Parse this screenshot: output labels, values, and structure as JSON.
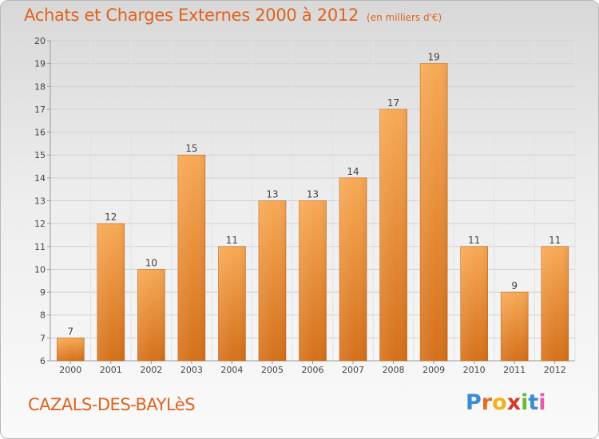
{
  "title": "Achats et Charges Externes 2000 à 2012",
  "unit": "(en milliers d'€)",
  "commune": "CAZALS-DES-BAYLèS",
  "logo_text": "Proxiti",
  "colors": {
    "accent": "#e0621d",
    "bar_light": "#f6a752",
    "bar_dark": "#d8741c",
    "grid": "#cfcfcf"
  },
  "chart_data": {
    "type": "bar",
    "categories": [
      "2000",
      "2001",
      "2002",
      "2003",
      "2004",
      "2005",
      "2006",
      "2007",
      "2008",
      "2009",
      "2010",
      "2011",
      "2012"
    ],
    "values": [
      7,
      12,
      10,
      15,
      11,
      13,
      13,
      14,
      17,
      19,
      11,
      9,
      11
    ],
    "title": "Achats et Charges Externes 2000 à 2012",
    "ylim": [
      6,
      20
    ],
    "yticks": [
      6,
      7,
      8,
      9,
      10,
      11,
      12,
      13,
      14,
      15,
      16,
      17,
      18,
      19,
      20
    ],
    "grid": true,
    "data_labels": true
  }
}
